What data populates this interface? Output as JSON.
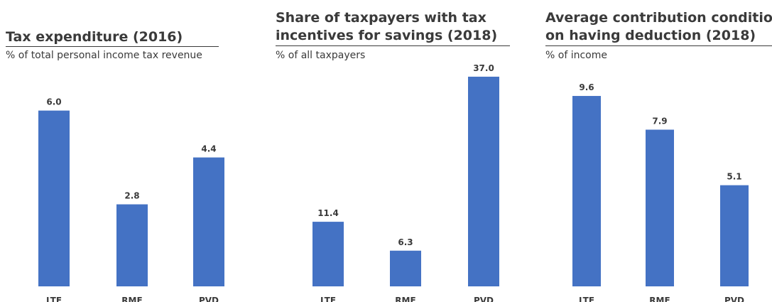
{
  "bar_color": "#4472c4",
  "chart_data": [
    {
      "type": "bar",
      "title_lines": [
        "Tax expenditure (2016)"
      ],
      "subtitle": "% of total personal income tax revenue",
      "categories": [
        "LTF",
        "RMF",
        "PVD"
      ],
      "values": [
        6.0,
        2.8,
        4.4
      ],
      "value_labels": [
        "6.0",
        "2.8",
        "4.4"
      ],
      "ylim": [
        0,
        6.5
      ],
      "grid": false,
      "legend": "none"
    },
    {
      "type": "bar",
      "title_lines": [
        "Share of taxpayers with tax",
        "incentives for savings (2018)"
      ],
      "subtitle": "% of all taxpayers",
      "categories": [
        "LTF",
        "RMF",
        "PVD"
      ],
      "values": [
        11.4,
        6.3,
        37.0
      ],
      "value_labels": [
        "11.4",
        "6.3",
        "37.0"
      ],
      "ylim": [
        0,
        40
      ],
      "grid": false,
      "legend": "none"
    },
    {
      "type": "bar",
      "title_lines": [
        "Average contribution conditional",
        "on having deduction (2018)"
      ],
      "subtitle": "% of income",
      "categories": [
        "LTF",
        "RMF",
        "PVD"
      ],
      "values": [
        9.6,
        7.9,
        5.1
      ],
      "value_labels": [
        "9.6",
        "7.9",
        "5.1"
      ],
      "ylim": [
        0,
        11.5
      ],
      "grid": false,
      "legend": "none"
    }
  ]
}
